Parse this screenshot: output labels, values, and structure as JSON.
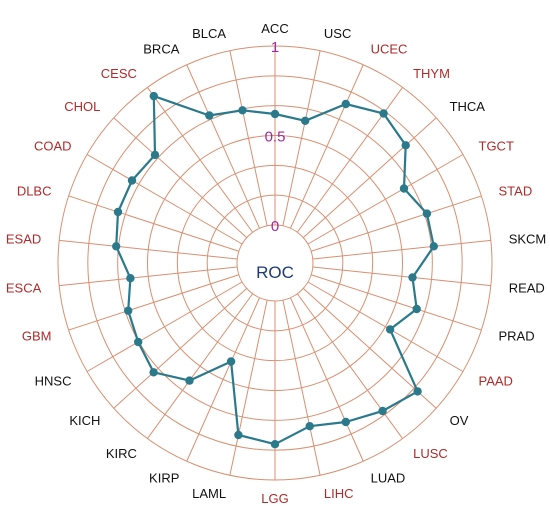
{
  "chart_data": {
    "type": "radar",
    "center_label": "ROC",
    "radial_axis": {
      "range": [
        0,
        1
      ],
      "ticks": [
        "0",
        "0.5",
        "1"
      ]
    },
    "categories": [
      "ACC",
      "USC",
      "UCEC",
      "THYM",
      "THCA",
      "TGCT",
      "STAD",
      "SKCM",
      "READ",
      "PRAD",
      "PAAD",
      "OV",
      "LUSC",
      "LUAD",
      "LIHC",
      "LGG",
      "LAML",
      "KIRP",
      "KIRC",
      "KICH",
      "HNSC",
      "GBM",
      "ESCA",
      "ESAD",
      "DLBC",
      "COAD",
      "CHOL",
      "CESC",
      "BRCA",
      "BLCA"
    ],
    "highlighted_categories": [
      "UCEC",
      "THYM",
      "TGCT",
      "STAD",
      "PAAD",
      "LUSC",
      "LIHC",
      "LGG",
      "GBM",
      "ESCA",
      "ESAD",
      "DLBC",
      "COAD",
      "CHOL",
      "CESC"
    ],
    "series": [
      {
        "values": [
          0.62,
          0.6,
          0.76,
          0.82,
          0.77,
          0.62,
          0.68,
          0.68,
          0.56,
          0.62,
          0.53,
          0.86,
          0.81,
          0.76,
          0.72,
          0.8,
          0.77,
          0.39,
          0.6,
          0.7,
          0.67,
          0.65,
          0.6,
          0.68,
          0.71,
          0.71,
          0.69,
          0.94,
          0.69,
          0.66
        ]
      }
    ],
    "colors": {
      "line": "#2a7a8c",
      "grid": "#d98f70",
      "highlight_label": "#b02a2a",
      "normal_label": "#111111",
      "tick_label": "#9e2a9e",
      "center_label": "#1c3a78"
    }
  }
}
